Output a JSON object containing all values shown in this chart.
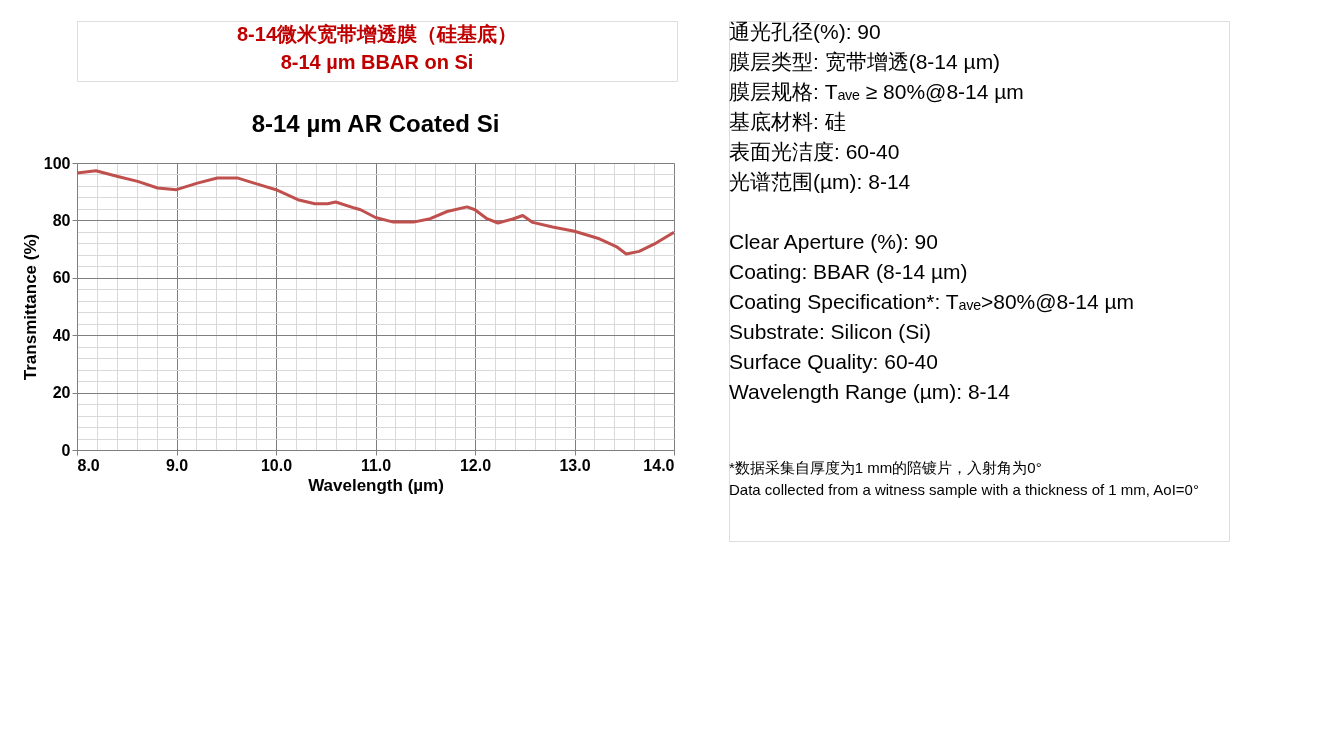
{
  "chart_data": [
    {
      "type": "other",
      "title": "8-14微米宽带增透膜（硅基底）",
      "subtitle": "8-14 µm BBAR on Si",
      "color": "#c00000"
    },
    {
      "type": "line",
      "title": "8-14 µm AR Coated Si",
      "xlabel": "Wavelength (µm)",
      "ylabel": "Transmittance (%)",
      "grid": true,
      "line_style": "solid",
      "marker": "none",
      "xlim": [
        8,
        14
      ],
      "ylim": [
        0,
        100
      ],
      "xticks": [
        {
          "value": 8,
          "label": "8.0"
        },
        {
          "value": 8.2,
          "label": null
        },
        {
          "value": 8.4,
          "label": null
        },
        {
          "value": 8.6,
          "label": null
        },
        {
          "value": 8.8,
          "label": null
        },
        {
          "value": 9,
          "label": "9.0"
        },
        {
          "value": 9.2,
          "label": null
        },
        {
          "value": 9.4,
          "label": null
        },
        {
          "value": 9.6,
          "label": null
        },
        {
          "value": 9.8,
          "label": null
        },
        {
          "value": 10,
          "label": "10.0"
        },
        {
          "value": 10.2,
          "label": null
        },
        {
          "value": 10.4,
          "label": null
        },
        {
          "value": 10.6,
          "label": null
        },
        {
          "value": 10.8,
          "label": null
        },
        {
          "value": 11,
          "label": "11.0"
        },
        {
          "value": 11.2,
          "label": null
        },
        {
          "value": 11.4,
          "label": null
        },
        {
          "value": 11.6,
          "label": null
        },
        {
          "value": 11.8,
          "label": null
        },
        {
          "value": 12,
          "label": "12.0"
        },
        {
          "value": 12.2,
          "label": null
        },
        {
          "value": 12.4,
          "label": null
        },
        {
          "value": 12.6,
          "label": null
        },
        {
          "value": 12.8,
          "label": null
        },
        {
          "value": 13,
          "label": "13.0"
        },
        {
          "value": 13.2,
          "label": null
        },
        {
          "value": 13.4,
          "label": null
        },
        {
          "value": 13.6,
          "label": null
        },
        {
          "value": 13.8,
          "label": null
        },
        {
          "value": 14,
          "label": "14.0"
        }
      ],
      "yticks": [
        0,
        {
          "value": 4,
          "label": null
        },
        {
          "value": 8,
          "label": null
        },
        {
          "value": 12,
          "label": null
        },
        {
          "value": 16,
          "label": null
        },
        20,
        {
          "value": 24,
          "label": null
        },
        {
          "value": 28,
          "label": null
        },
        {
          "value": 32,
          "label": null
        },
        {
          "value": 36,
          "label": null
        },
        40,
        {
          "value": 44,
          "label": null
        },
        {
          "value": 48,
          "label": null
        },
        {
          "value": 52,
          "label": null
        },
        {
          "value": 56,
          "label": null
        },
        60,
        {
          "value": 64,
          "label": null
        },
        {
          "value": 68,
          "label": null
        },
        {
          "value": 72,
          "label": null
        },
        {
          "value": 76,
          "label": null
        },
        80,
        {
          "value": 84,
          "label": null
        },
        {
          "value": 88,
          "label": null
        },
        {
          "value": 92,
          "label": null
        },
        {
          "value": 96,
          "label": null
        },
        100
      ],
      "x": [
        8.0,
        8.19,
        8.41,
        8.61,
        8.81,
        9.0,
        9.21,
        9.41,
        9.61,
        9.78,
        10.0,
        10.22,
        10.39,
        10.52,
        10.6,
        10.79,
        10.85,
        11.0,
        11.18,
        11.38,
        11.55,
        11.72,
        11.92,
        12.0,
        12.12,
        12.23,
        12.38,
        12.48,
        12.58,
        12.78,
        13.0,
        13.25,
        13.42,
        13.52,
        13.65,
        13.82,
        14.0
      ],
      "series": [
        {
          "color": "#c0504d",
          "values": [
            96.5,
            97.3,
            95.3,
            93.6,
            91.3,
            90.7,
            93,
            94.8,
            94.8,
            93,
            90.7,
            87.2,
            85.8,
            85.8,
            86.4,
            84.3,
            83.7,
            81,
            79.4,
            79.4,
            80.6,
            83.1,
            84.7,
            83.7,
            80.6,
            79.1,
            80.5,
            81.7,
            79.3,
            77.7,
            76.2,
            73.6,
            70.9,
            68.3,
            69.2,
            72.1,
            75.9
          ]
        }
      ]
    },
    {
      "type": "other",
      "annotations": [
        "通光孔径(%): 90",
        "膜层类型: 宽带增透(8-14 µm)",
        "膜层规格: Tₐᵥₑ ≥ 80%@8-14 µm",
        "基底材料: 硅",
        "表面光洁度: 60-40",
        "光谱范围(µm): 8-14",
        "Clear Aperture (%): 90",
        "Coating: BBAR (8-14 µm)",
        "Coating Specification*: Tₐᵥₑ>80%@8-14 µm",
        "Substrate: Silicon (Si)",
        "Surface Quality: 60-40",
        "Wavelength Range (µm): 8-14",
        "*数据采集自厚度为1 mm的陪镀片，入射角为0°",
        "Data collected from a witness sample with a thickness of 1 mm, AoI=0°"
      ]
    }
  ]
}
